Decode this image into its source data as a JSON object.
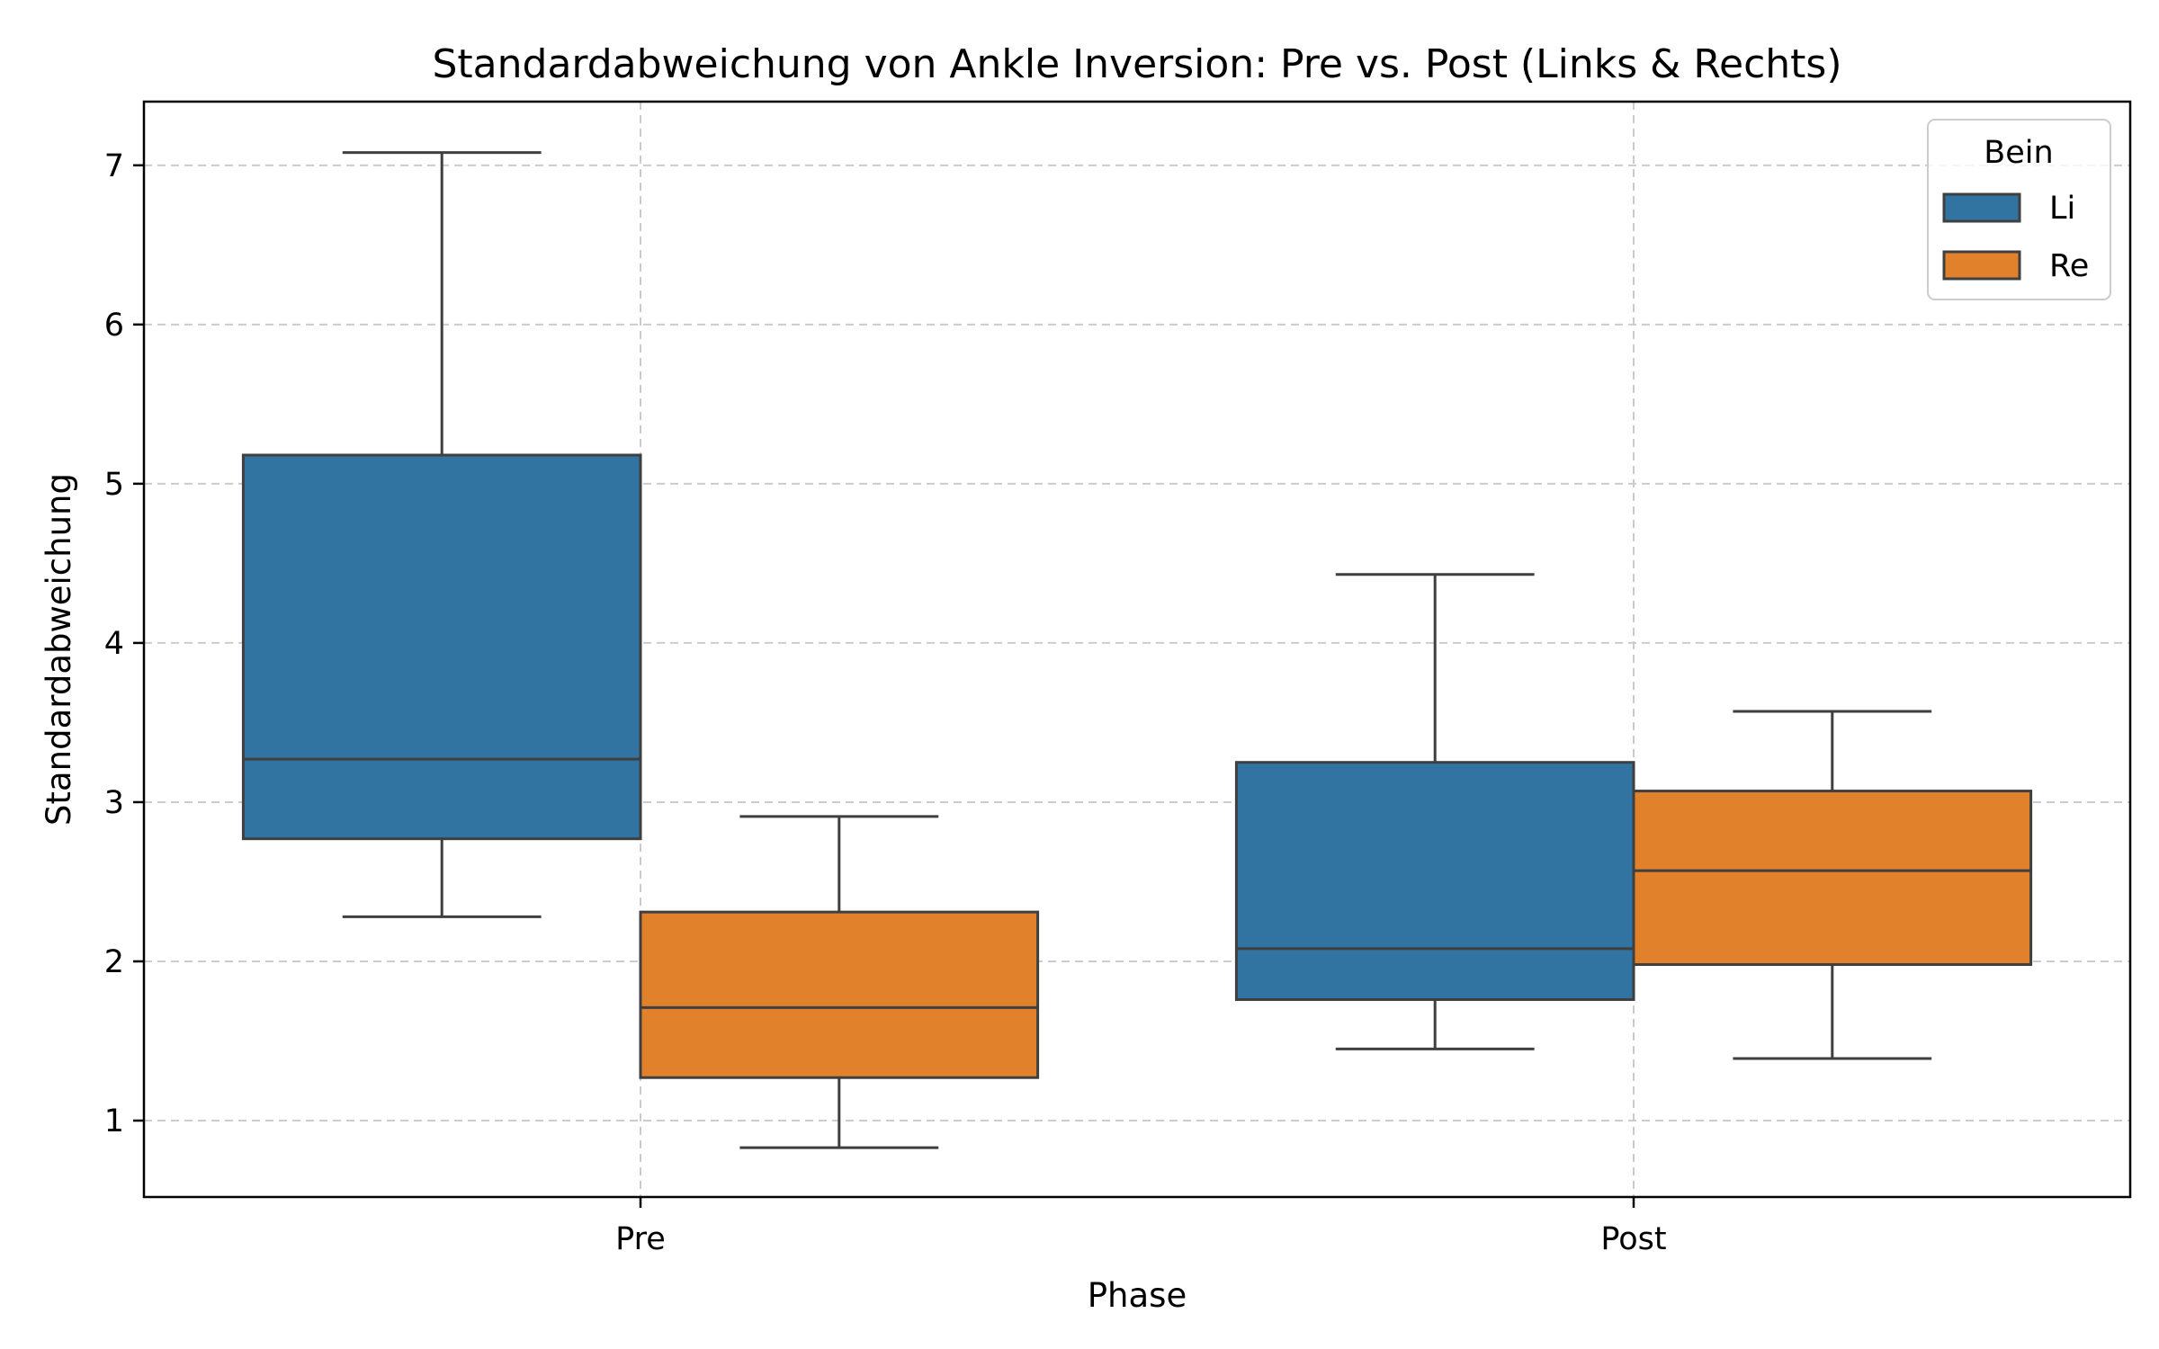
{
  "chart_data": {
    "type": "box",
    "title": "Standardabweichung von Ankle Inversion: Pre vs. Post (Links & Rechts)",
    "xlabel": "Phase",
    "ylabel": "Standardabweichung",
    "categories": [
      "Pre",
      "Post"
    ],
    "ylim": [
      0.52,
      7.4
    ],
    "yticks": [
      1,
      2,
      3,
      4,
      5,
      6,
      7
    ],
    "grid": true,
    "legend": {
      "title": "Bein",
      "placement": "top-right"
    },
    "series": [
      {
        "name": "Li",
        "color": "#3274a1",
        "boxes": [
          {
            "category": "Pre",
            "whisker_low": 2.28,
            "q1": 2.77,
            "median": 3.27,
            "q3": 5.18,
            "whisker_high": 7.08
          },
          {
            "category": "Post",
            "whisker_low": 1.45,
            "q1": 1.76,
            "median": 2.08,
            "q3": 3.25,
            "whisker_high": 4.43
          }
        ]
      },
      {
        "name": "Re",
        "color": "#e1812c",
        "boxes": [
          {
            "category": "Pre",
            "whisker_low": 0.83,
            "q1": 1.27,
            "median": 1.71,
            "q3": 2.31,
            "whisker_high": 2.91
          },
          {
            "category": "Post",
            "whisker_low": 1.39,
            "q1": 1.98,
            "median": 2.57,
            "q3": 3.07,
            "whisker_high": 3.57
          }
        ]
      }
    ]
  }
}
